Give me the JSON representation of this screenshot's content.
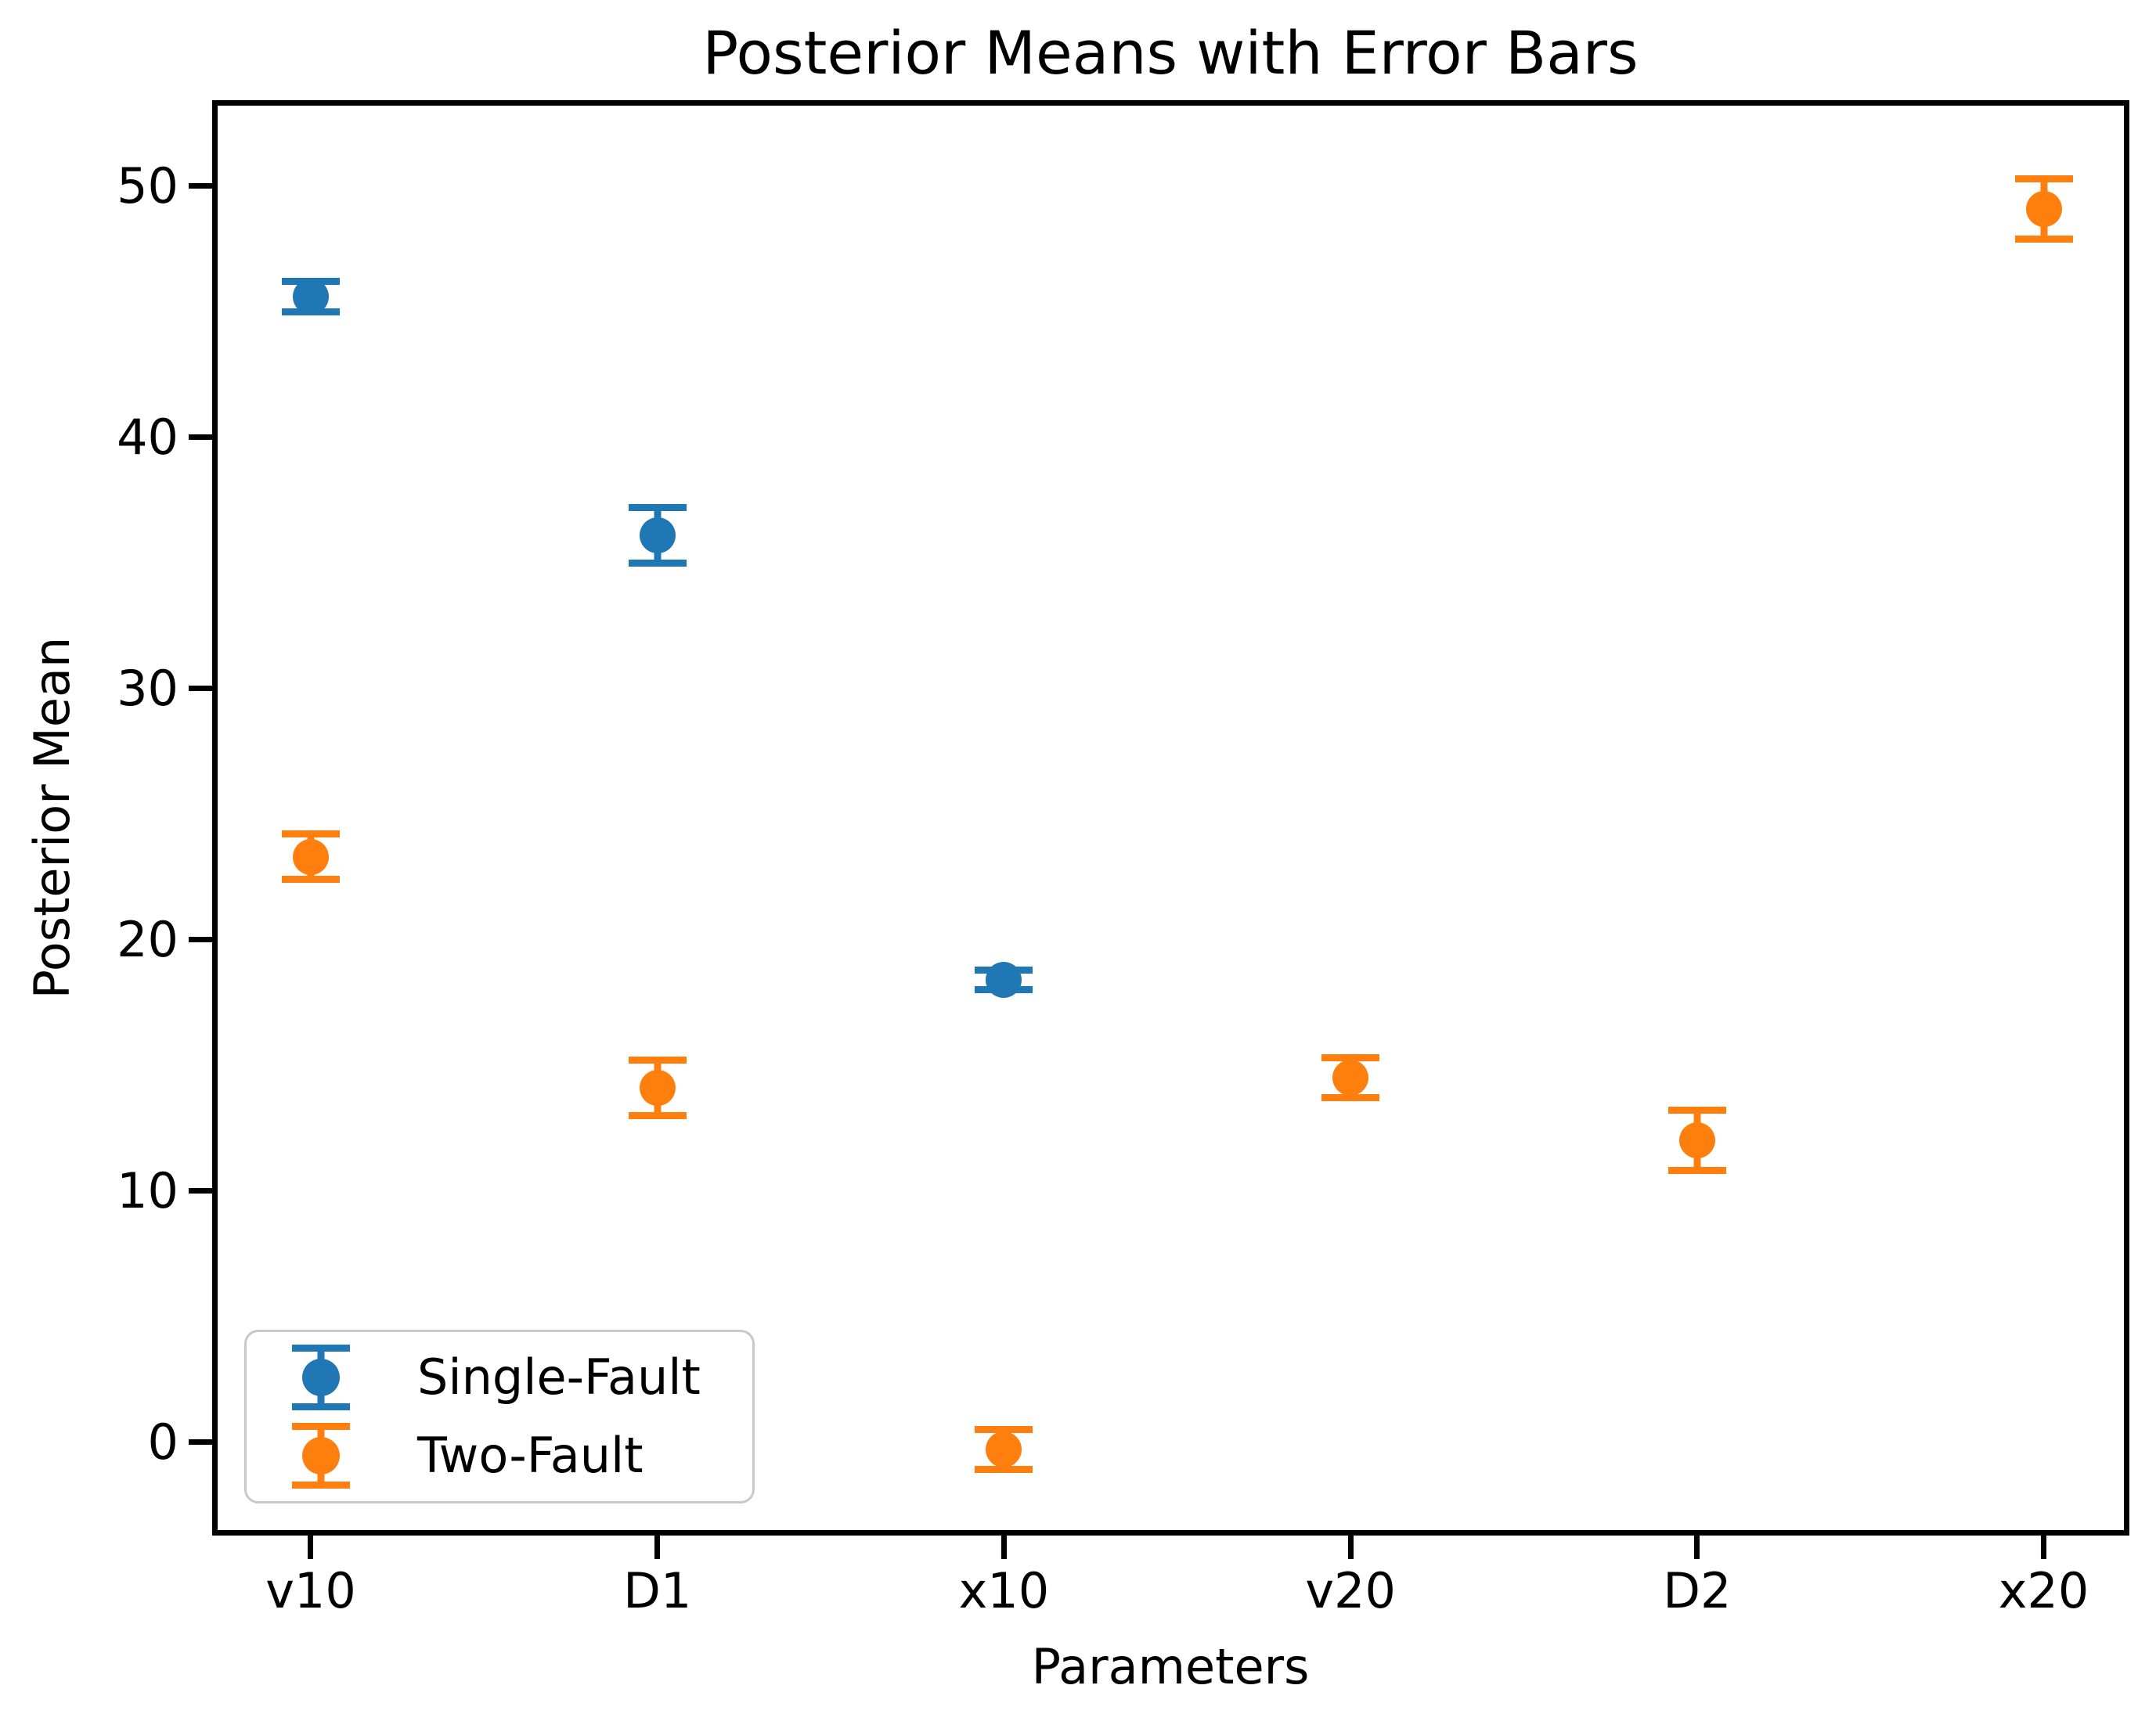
{
  "title": "Posterior Means with Error Bars",
  "chart_data": {
    "type": "scatter",
    "title": "Posterior Means with Error Bars",
    "xlabel": "Parameters",
    "ylabel": "Posterior Mean",
    "categories": [
      "v10",
      "D1",
      "x10",
      "v20",
      "D2",
      "x20"
    ],
    "series": [
      {
        "name": "Single-Fault",
        "color": "#1f77b4",
        "values": [
          45.6,
          36.1,
          18.4,
          null,
          null,
          null
        ],
        "errors": [
          0.6,
          1.1,
          0.4,
          null,
          null,
          null
        ]
      },
      {
        "name": "Two-Fault",
        "color": "#ff7f0e",
        "values": [
          23.3,
          14.1,
          -0.3,
          14.5,
          12.0,
          49.1
        ],
        "errors": [
          0.9,
          1.1,
          0.8,
          0.8,
          1.2,
          1.2
        ]
      }
    ],
    "yticks": [
      0,
      10,
      20,
      30,
      40,
      50
    ],
    "ylim": [
      -3.5,
      53.2
    ],
    "grid": false,
    "legend_position": "lower left",
    "marker": "circle-with-error-bars"
  }
}
